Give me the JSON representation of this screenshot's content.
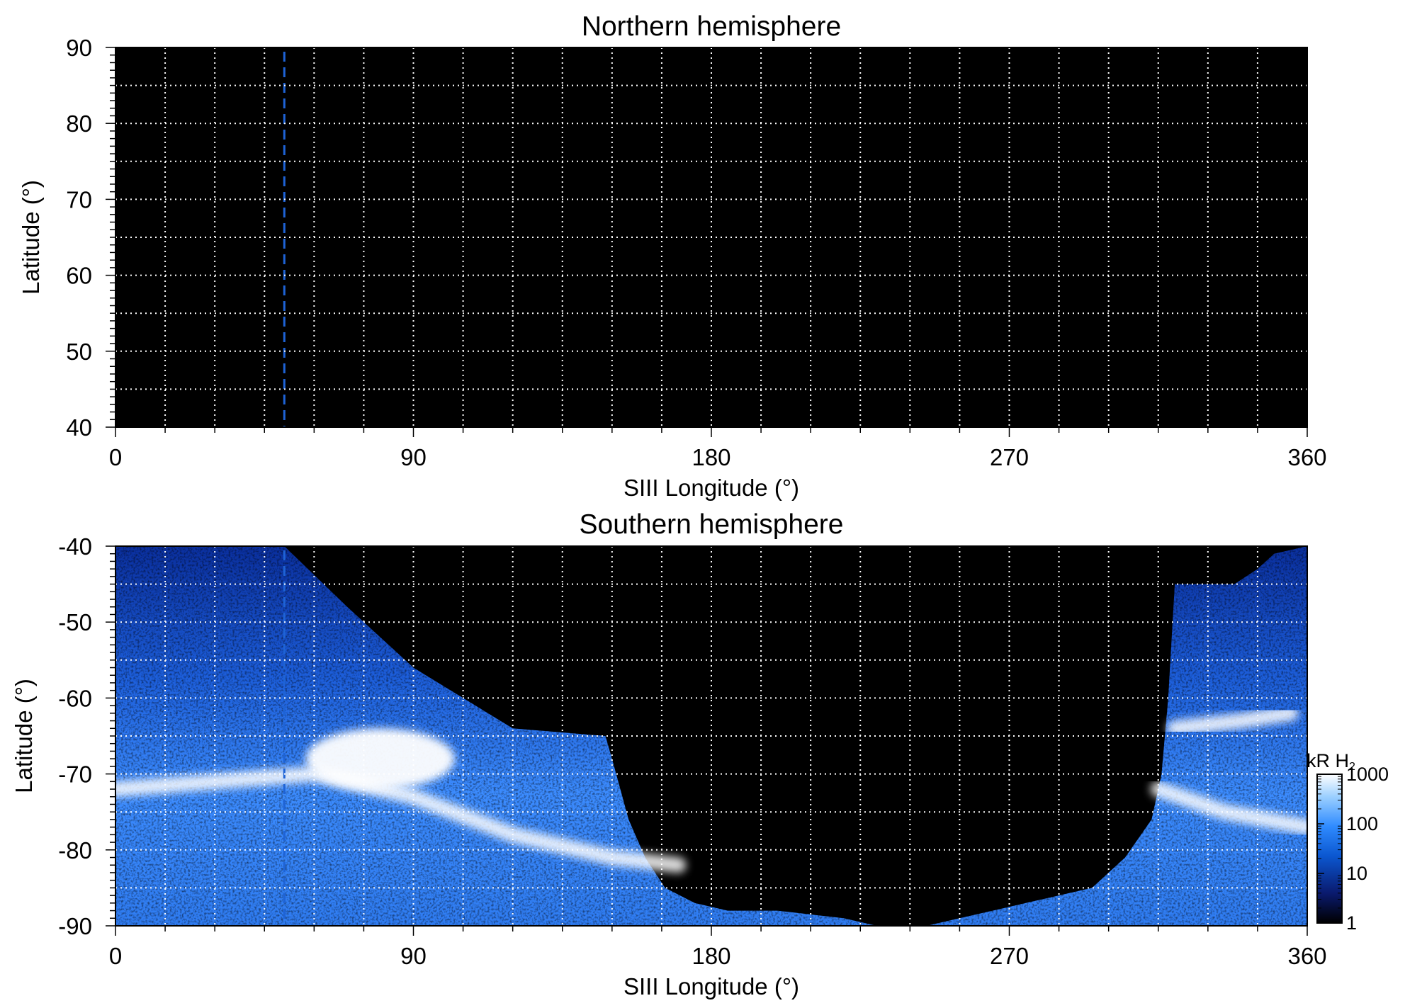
{
  "chart_data": [
    {
      "type": "heatmap",
      "title": "Northern hemisphere",
      "xlabel": "SIII Longitude (°)",
      "ylabel": "Latitude (°)",
      "xlim": [
        0,
        360
      ],
      "ylim": [
        40,
        90
      ],
      "x_ticks": [
        "0",
        "90",
        "180",
        "270",
        "360"
      ],
      "y_ticks": [
        "40",
        "50",
        "60",
        "70",
        "80",
        "90"
      ],
      "grid": true,
      "grid_style": "dotted white",
      "x_grid_step": 15,
      "y_grid_step": 5,
      "reference_line": {
        "longitude": 51,
        "style": "dashed",
        "color": "#1e63d6"
      },
      "coverage": "none",
      "background": "#000000"
    },
    {
      "type": "heatmap",
      "title": "Southern hemisphere",
      "xlabel": "SIII Longitude (°)",
      "ylabel": "Latitude (°)",
      "xlim": [
        0,
        360
      ],
      "ylim": [
        -90,
        -40
      ],
      "x_ticks": [
        "0",
        "90",
        "180",
        "270",
        "360"
      ],
      "y_ticks": [
        "-90",
        "-80",
        "-70",
        "-60",
        "-50",
        "-40"
      ],
      "grid": true,
      "grid_style": "dotted white",
      "x_grid_step": 15,
      "y_grid_step": 5,
      "reference_line": {
        "longitude": 51,
        "style": "dashed",
        "color": "#1e63d6"
      },
      "coverage_boundary": {
        "left_region": [
          [
            0,
            -40
          ],
          [
            51,
            -40
          ],
          [
            70,
            -48
          ],
          [
            90,
            -56
          ],
          [
            105,
            -60
          ],
          [
            120,
            -64
          ],
          [
            148,
            -65
          ],
          [
            150,
            -68
          ],
          [
            155,
            -76
          ],
          [
            160,
            -81
          ],
          [
            166,
            -85
          ],
          [
            175,
            -87
          ],
          [
            185,
            -88
          ],
          [
            200,
            -88
          ],
          [
            220,
            -89
          ],
          [
            230,
            -90
          ],
          [
            0,
            -90
          ]
        ],
        "right_region": [
          [
            360,
            -40
          ],
          [
            350,
            -41
          ],
          [
            345,
            -43
          ],
          [
            338,
            -45
          ],
          [
            320,
            -45
          ],
          [
            318,
            -60
          ],
          [
            316,
            -70
          ],
          [
            313,
            -76
          ],
          [
            305,
            -81
          ],
          [
            295,
            -85
          ],
          [
            275,
            -87
          ],
          [
            265,
            -88
          ],
          [
            255,
            -89
          ],
          [
            245,
            -90
          ],
          [
            360,
            -90
          ]
        ]
      },
      "emission_features": [
        {
          "name": "main-oval-band",
          "points": [
            [
              0,
              -72
            ],
            [
              30,
              -71
            ],
            [
              60,
              -70
            ],
            [
              90,
              -73
            ],
            [
              120,
              -78
            ],
            [
              150,
              -81
            ],
            [
              170,
              -82
            ]
          ],
          "level_kR": 1000
        },
        {
          "name": "bright-patch",
          "center": [
            80,
            -68
          ],
          "extent_deg": [
            45,
            8
          ],
          "level_kR": 1000
        },
        {
          "name": "right-arc",
          "points": [
            [
              320,
              -64
            ],
            [
              340,
              -63
            ],
            [
              355,
              -62
            ]
          ],
          "level_kR": 1000
        },
        {
          "name": "right-oval-band",
          "points": [
            [
              315,
              -72
            ],
            [
              335,
              -75
            ],
            [
              360,
              -77
            ]
          ],
          "level_kR": 1000
        }
      ],
      "colorbar": {
        "label": "kR H₂",
        "label_main": "kR H",
        "label_sub": "2",
        "scale": "log",
        "range": [
          1,
          1000
        ],
        "ticks": [
          "1",
          "10",
          "100",
          "1000"
        ],
        "colors": [
          "#000000",
          "#0a1a6e",
          "#0b57d0",
          "#2f8bff",
          "#9cd0ff",
          "#ffffff"
        ]
      },
      "background": "#000000"
    }
  ]
}
